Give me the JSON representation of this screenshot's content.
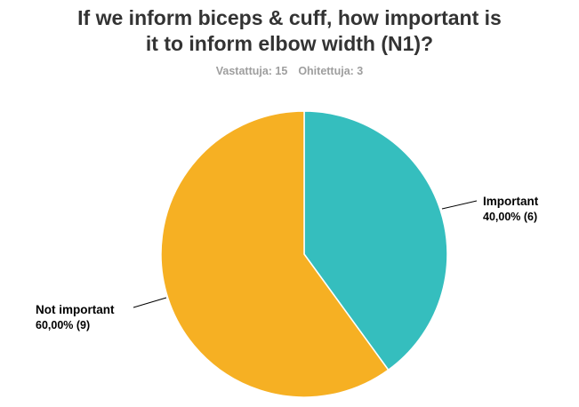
{
  "title_lines": [
    "If we inform biceps & cuff, how important is",
    "it to inform elbow width (N1)?"
  ],
  "stats": {
    "answered": "Vastattuja: 15",
    "skipped": "Ohitettuja: 3"
  },
  "chart_data": {
    "type": "pie",
    "title": "If we inform biceps & cuff, how important is it to inform elbow width (N1)?",
    "slices": [
      {
        "label": "Important",
        "value": 40.0,
        "count": 6,
        "value_label": "40,00% (6)",
        "color": "#35BEBE"
      },
      {
        "label": "Not important",
        "value": 60.0,
        "count": 9,
        "value_label": "60,00% (9)",
        "color": "#F6B023"
      }
    ],
    "legend": "none",
    "labels": "outside-with-leader-lines"
  }
}
